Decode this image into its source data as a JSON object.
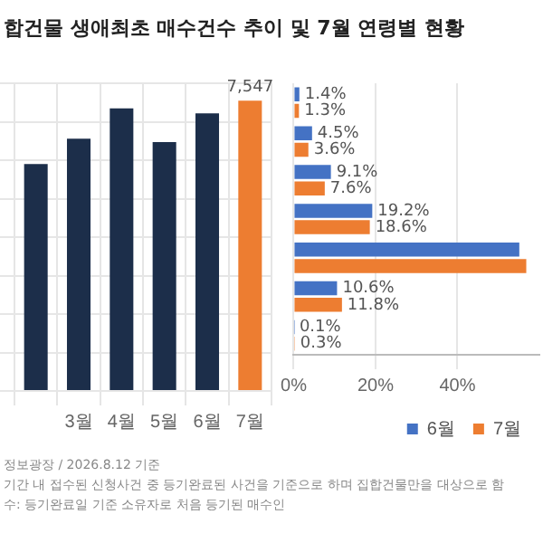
{
  "chart_data": [
    {
      "type": "bar",
      "title": "합건물 생애최초 매수건수 추이 및 7월 연령별 현황",
      "grid": true,
      "tick_labels": "x",
      "ylim": [
        0,
        8000
      ],
      "yticks": [
        {
          "value": 0,
          "label": null
        },
        {
          "value": 1000,
          "label": null
        },
        {
          "value": 2000,
          "label": null
        },
        {
          "value": 3000,
          "label": null
        },
        {
          "value": 4000,
          "label": null
        },
        {
          "value": 5000,
          "label": null
        },
        {
          "value": 6000,
          "label": null
        },
        {
          "value": 7000,
          "label": null
        },
        {
          "value": 8000,
          "label": null
        }
      ],
      "categories": [
        null,
        "3월",
        "4월",
        "5월",
        "6월",
        "7월"
      ],
      "values": [
        5900,
        6560,
        7350,
        6470,
        7220,
        7547
      ],
      "colors": [
        "#1c2e4a",
        "#1c2e4a",
        "#1c2e4a",
        "#1c2e4a",
        "#1c2e4a",
        "#ed7d31"
      ],
      "value_labels": [
        null,
        null,
        null,
        null,
        null,
        "7,547"
      ],
      "annotations": [
        "정보광장 / 2026.8.12 기준",
        "기간 내 접수된 신청사건 중 등기완료된 사건을 기준으로 하며 집합건물만을 대상으로 함",
        "수: 등기완료일 기준 소유자로 처음 등기된 매수인"
      ]
    },
    {
      "type": "bar",
      "orientation": "horizontal",
      "grid": "x",
      "legend": "bottom right",
      "tick_labels": "x",
      "categories": [
        null,
        null,
        null,
        null,
        null,
        null,
        null
      ],
      "xlim": [
        0,
        60
      ],
      "xticks": [
        {
          "value": 0,
          "label": "0%"
        },
        {
          "value": 20,
          "label": "20%"
        },
        {
          "value": 40,
          "label": "40%"
        }
      ],
      "series": [
        {
          "name": "6월",
          "color": "#4472c4",
          "values": [
            1.4,
            4.5,
            9.1,
            19.2,
            55.1,
            10.6,
            0.1
          ],
          "value_labels": [
            "1.4%",
            "4.5%",
            "9.1%",
            "19.2%",
            null,
            "10.6%",
            "0.1%"
          ]
        },
        {
          "name": "7월",
          "color": "#ed7d31",
          "values": [
            1.3,
            3.6,
            7.6,
            18.6,
            56.8,
            11.8,
            0.3
          ],
          "value_labels": [
            "1.3%",
            "3.6%",
            "7.6%",
            "18.6%",
            null,
            "11.8%",
            "0.3%"
          ]
        }
      ]
    }
  ]
}
